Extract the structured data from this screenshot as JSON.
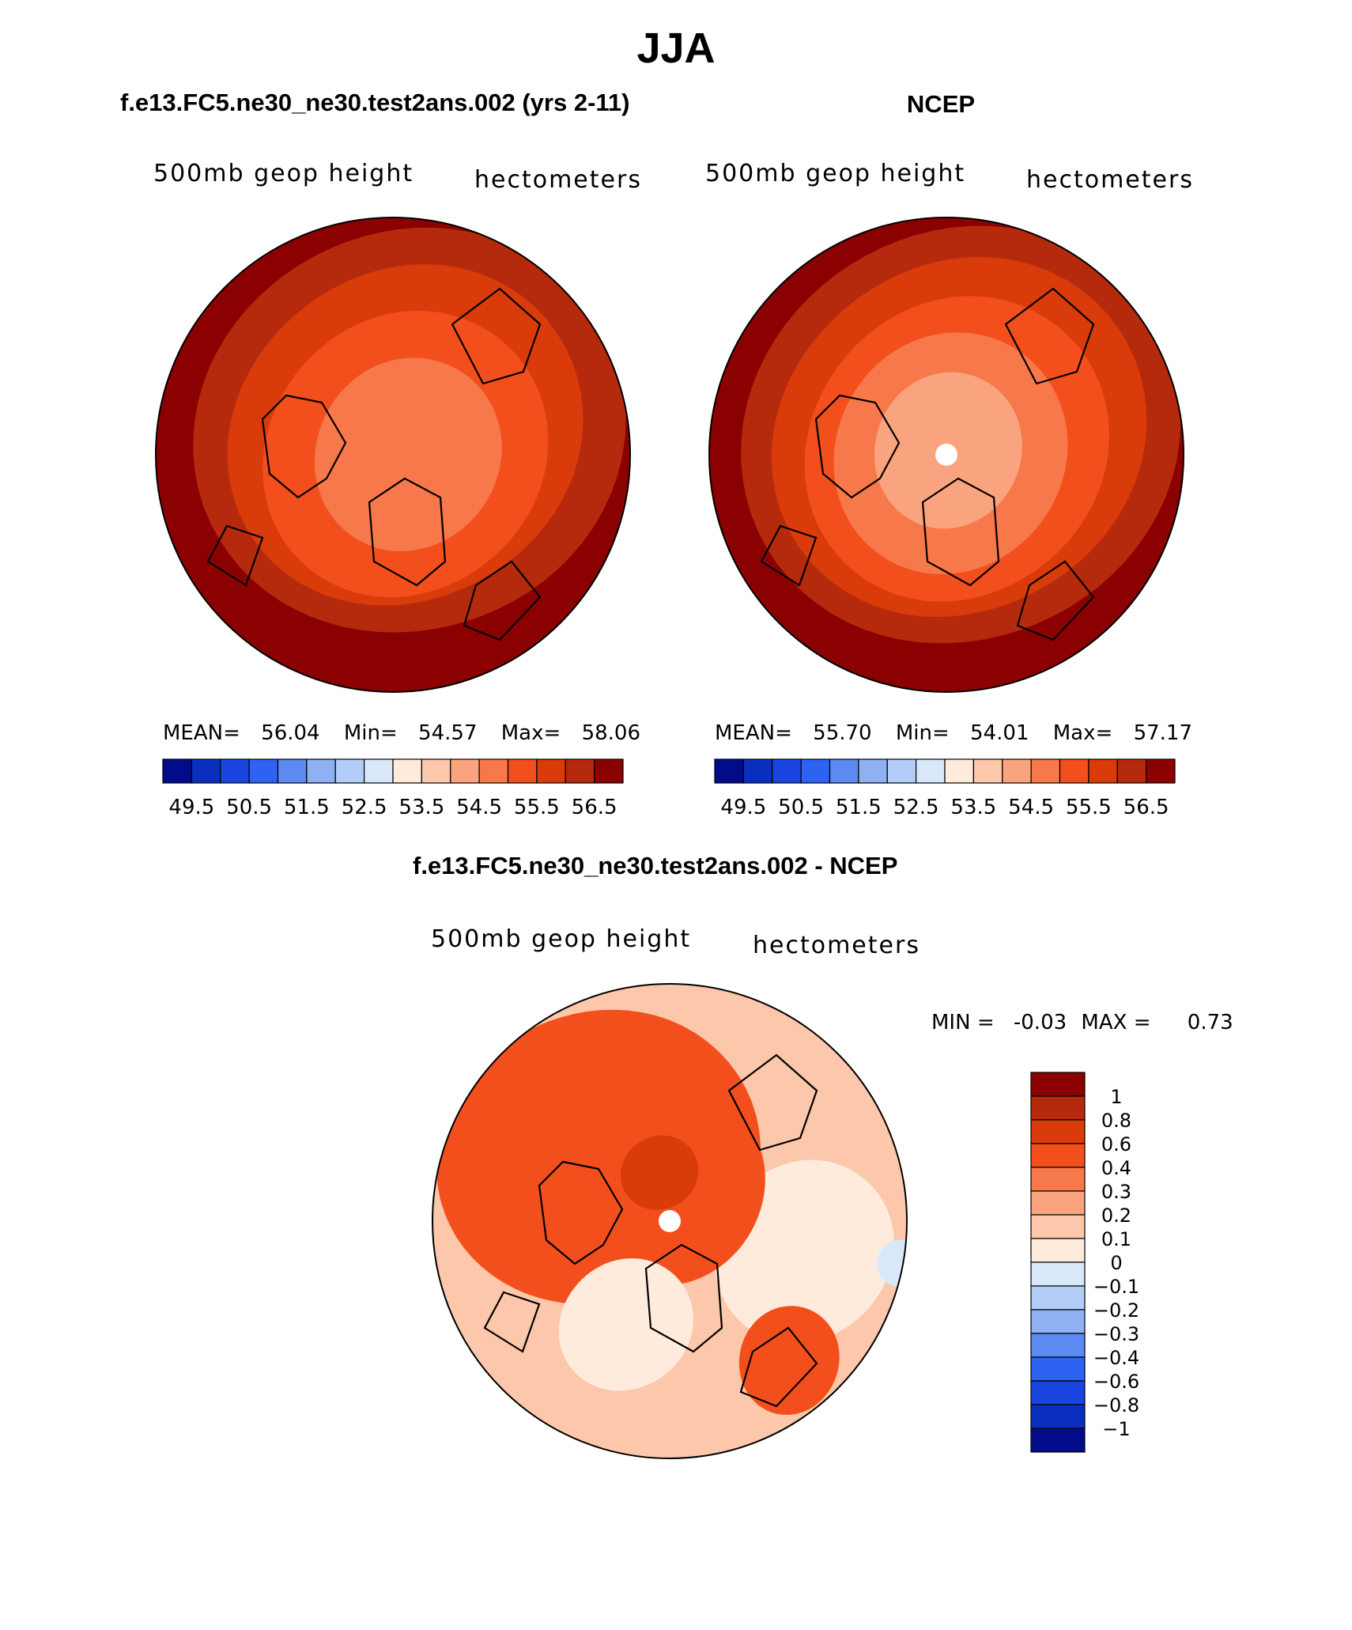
{
  "page_title": "JJA",
  "colors": {
    "dark_red": "#8b0000",
    "brick": "#b52a0c",
    "red_orange": "#d93b0a",
    "orange": "#f24f1c",
    "coral": "#f7784a",
    "salmon": "#f9a47f",
    "peach": "#fcc7aa",
    "cream": "#feebdc",
    "pale_blue": "#d9e8f9",
    "light_blue": "#b4cdf6",
    "blue3": "#8fb0f3",
    "blue4": "#5b8af2",
    "blue5": "#2d63f0",
    "blue6": "#1a44e0",
    "blue7": "#0a2fbf",
    "navy": "#020b8a",
    "continent_stroke": "#000000"
  },
  "chart_data": [
    {
      "id": "model",
      "type": "heatmap",
      "projection": "north-polar-stereographic",
      "title": "f.e13.FC5.ne30_ne30.test2ans.002 (yrs 2-11)",
      "field_label": "500mb geop height",
      "units_label": "hectometers",
      "stats": {
        "mean_label": "MEAN=",
        "mean": "56.04",
        "min_label": "Min=",
        "min": "54.57",
        "max_label": "Max=",
        "max": "58.06"
      },
      "contour_levels": [
        49.5,
        50.0,
        50.5,
        51.0,
        51.5,
        52.0,
        52.5,
        53.0,
        53.5,
        54.0,
        54.5,
        55.0,
        55.5,
        56.0,
        56.5
      ],
      "colorbar_tick_labels": [
        "49.5",
        "50.5",
        "51.5",
        "52.5",
        "53.5",
        "54.5",
        "55.5",
        "56.5"
      ],
      "pole_value": 54.9
    },
    {
      "id": "obs",
      "type": "heatmap",
      "projection": "north-polar-stereographic",
      "title": "NCEP",
      "field_label": "500mb geop height",
      "units_label": "hectometers",
      "stats": {
        "mean_label": "MEAN=",
        "mean": "55.70",
        "min_label": "Min=",
        "min": "54.01",
        "max_label": "Max=",
        "max": "57.17"
      },
      "contour_levels": [
        49.5,
        50.0,
        50.5,
        51.0,
        51.5,
        52.0,
        52.5,
        53.0,
        53.5,
        54.0,
        54.5,
        55.0,
        55.5,
        56.0,
        56.5
      ],
      "colorbar_tick_labels": [
        "49.5",
        "50.5",
        "51.5",
        "52.5",
        "53.5",
        "54.5",
        "55.5",
        "56.5"
      ],
      "pole_value": 54.2
    },
    {
      "id": "diff",
      "type": "heatmap",
      "projection": "north-polar-stereographic",
      "title": "f.e13.FC5.ne30_ne30.test2ans.002 - NCEP",
      "field_label": "500mb geop height",
      "units_label": "hectometers",
      "stats": {
        "min_label": "MIN =",
        "min": "-0.03",
        "max_label": "MAX =",
        "max": "0.73"
      },
      "contour_levels": [
        -1,
        -0.8,
        -0.6,
        -0.4,
        -0.3,
        -0.2,
        -0.1,
        0,
        0.1,
        0.2,
        0.3,
        0.4,
        0.6,
        0.8,
        1
      ],
      "colorbar_tick_labels": [
        "1",
        "0.8",
        "0.6",
        "0.4",
        "0.3",
        "0.2",
        "0.1",
        "0",
        "−0.1",
        "−0.2",
        "−0.3",
        "−0.4",
        "−0.6",
        "−0.8",
        "−1"
      ]
    }
  ]
}
